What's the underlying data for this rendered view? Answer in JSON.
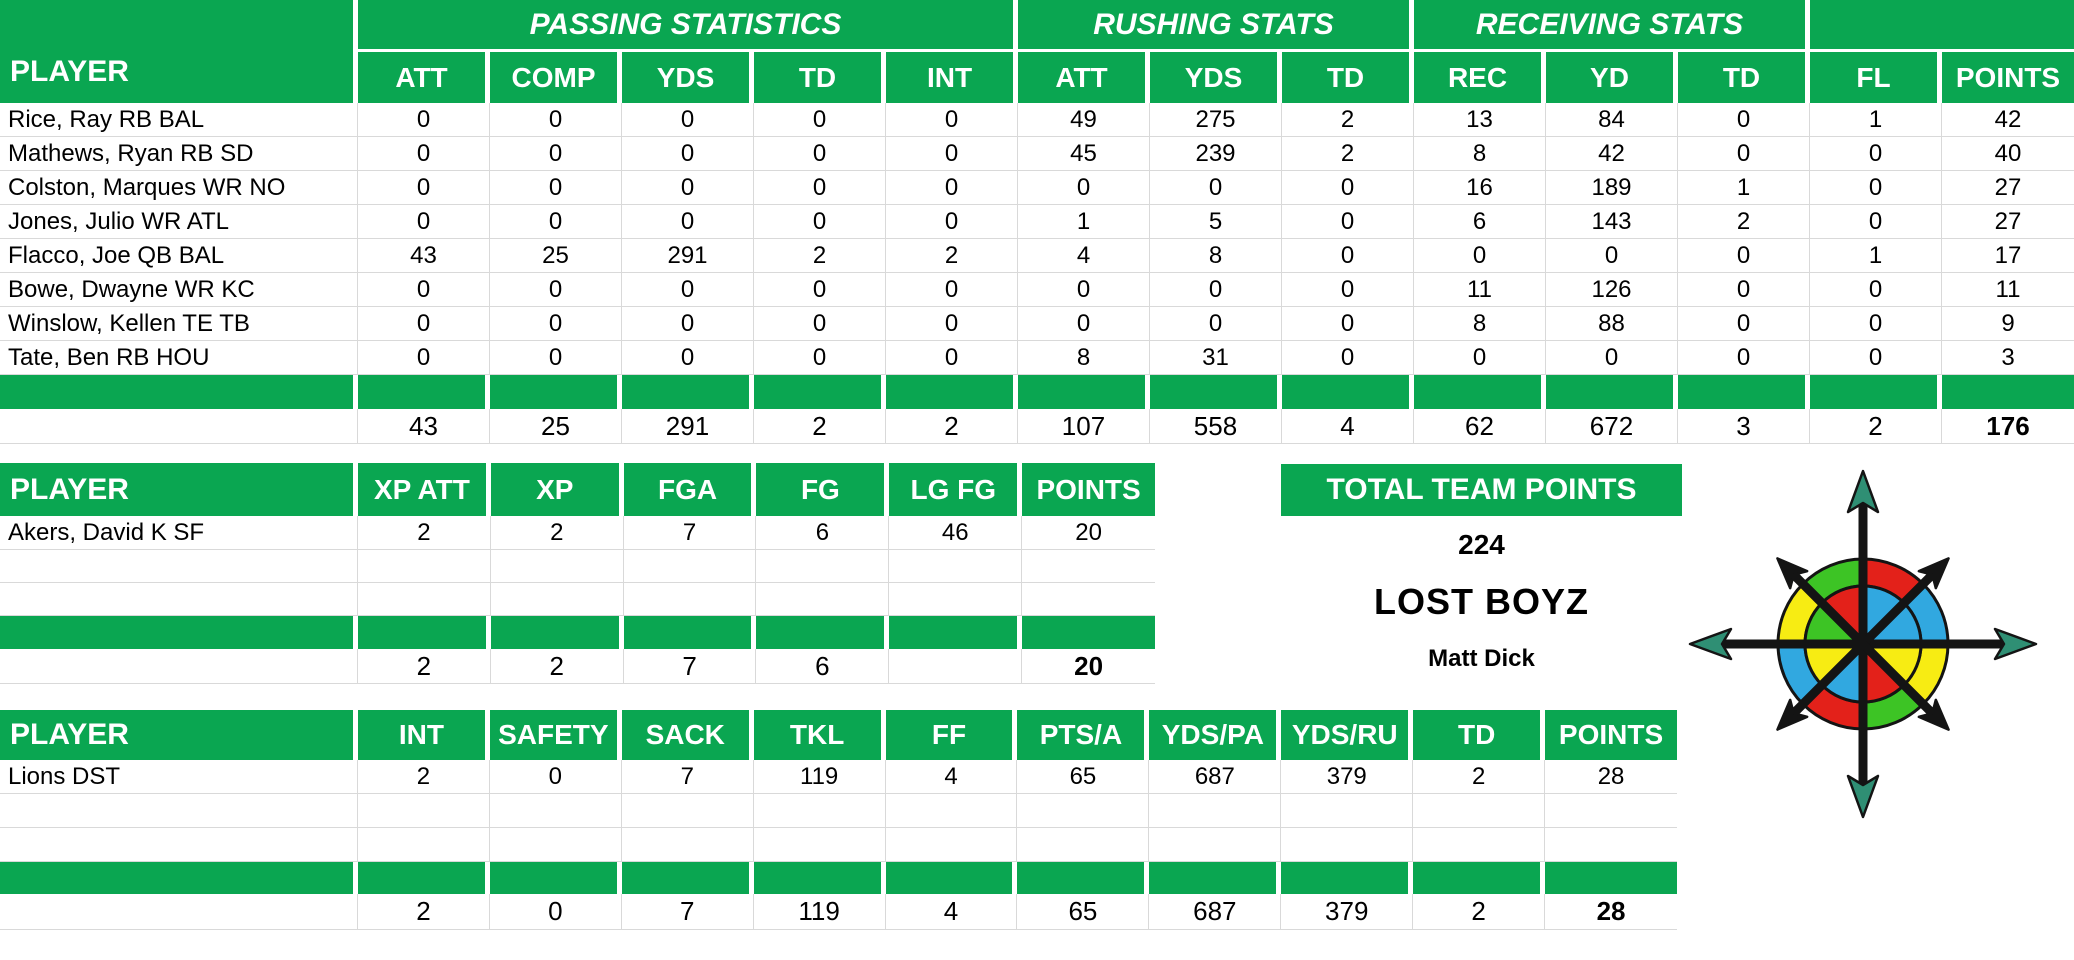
{
  "colors": {
    "green": "#0aa651",
    "grid": "#d9d9d9",
    "header_text": "#ffffff",
    "text": "#000000"
  },
  "offense_table": {
    "player_header": "PLAYER",
    "groups": [
      {
        "label": "PASSING STATISTICS",
        "span": 5
      },
      {
        "label": "RUSHING STATS",
        "span": 3
      },
      {
        "label": "RECEIVING STATS",
        "span": 3
      },
      {
        "label": "",
        "span": 2
      }
    ],
    "columns": [
      "ATT",
      "COMP",
      "YDS",
      "TD",
      "INT",
      "ATT",
      "YDS",
      "TD",
      "REC",
      "YD",
      "TD",
      "FL",
      "POINTS"
    ],
    "rows": [
      {
        "player": "Rice, Ray RB BAL",
        "values": [
          "0",
          "0",
          "0",
          "0",
          "0",
          "49",
          "275",
          "2",
          "13",
          "84",
          "0",
          "1",
          "42"
        ]
      },
      {
        "player": "Mathews, Ryan RB SD",
        "values": [
          "0",
          "0",
          "0",
          "0",
          "0",
          "45",
          "239",
          "2",
          "8",
          "42",
          "0",
          "0",
          "40"
        ]
      },
      {
        "player": "Colston, Marques WR NO",
        "values": [
          "0",
          "0",
          "0",
          "0",
          "0",
          "0",
          "0",
          "0",
          "16",
          "189",
          "1",
          "0",
          "27"
        ]
      },
      {
        "player": "Jones, Julio WR ATL",
        "values": [
          "0",
          "0",
          "0",
          "0",
          "0",
          "1",
          "5",
          "0",
          "6",
          "143",
          "2",
          "0",
          "27"
        ]
      },
      {
        "player": "Flacco, Joe QB BAL",
        "values": [
          "43",
          "25",
          "291",
          "2",
          "2",
          "4",
          "8",
          "0",
          "0",
          "0",
          "0",
          "1",
          "17"
        ]
      },
      {
        "player": "Bowe, Dwayne WR KC",
        "values": [
          "0",
          "0",
          "0",
          "0",
          "0",
          "0",
          "0",
          "0",
          "11",
          "126",
          "0",
          "0",
          "11"
        ]
      },
      {
        "player": "Winslow, Kellen TE TB",
        "values": [
          "0",
          "0",
          "0",
          "0",
          "0",
          "0",
          "0",
          "0",
          "8",
          "88",
          "0",
          "0",
          "9"
        ]
      },
      {
        "player": "Tate, Ben RB HOU",
        "values": [
          "0",
          "0",
          "0",
          "0",
          "0",
          "8",
          "31",
          "0",
          "0",
          "0",
          "0",
          "0",
          "3"
        ]
      }
    ],
    "empty_rows": 0,
    "totals": [
      "43",
      "25",
      "291",
      "2",
      "2",
      "107",
      "558",
      "4",
      "62",
      "672",
      "3",
      "2",
      "176"
    ]
  },
  "kicker_table": {
    "player_header": "PLAYER",
    "columns": [
      "XP ATT",
      "XP",
      "FGA",
      "FG",
      "LG FG",
      "POINTS"
    ],
    "rows": [
      {
        "player": "Akers, David K SF",
        "values": [
          "2",
          "2",
          "7",
          "6",
          "46",
          "20"
        ]
      }
    ],
    "empty_rows": 2,
    "totals": [
      "2",
      "2",
      "7",
      "6",
      "",
      "20"
    ]
  },
  "defense_table": {
    "player_header": "PLAYER",
    "columns": [
      "INT",
      "SAFETY",
      "SACK",
      "TKL",
      "FF",
      "PTS/A",
      "YDS/PA",
      "YDS/RU",
      "TD",
      "POINTS"
    ],
    "rows": [
      {
        "player": "Lions DST",
        "values": [
          "2",
          "0",
          "7",
          "119",
          "4",
          "65",
          "687",
          "379",
          "2",
          "28"
        ]
      }
    ],
    "empty_rows": 2,
    "totals": [
      "2",
      "0",
      "7",
      "119",
      "4",
      "65",
      "687",
      "379",
      "2",
      "28"
    ]
  },
  "team_summary": {
    "header": "TOTAL TEAM POINTS",
    "total_points": "224",
    "team_name": "LOST BOYZ",
    "owner": "Matt Dick"
  },
  "logo": {
    "kind": "compass-rose",
    "ring_colors": [
      "#e3211a",
      "#31a8e0",
      "#f7ec13",
      "#3dc425",
      "#e3211a",
      "#31a8e0",
      "#f7ec13",
      "#3dc425"
    ],
    "wedge_colors": [
      "#31a8e0",
      "#31a8e0",
      "#f7ec13",
      "#e3211a",
      "#31a8e0",
      "#f7ec13",
      "#3dc425",
      "#e3211a"
    ],
    "arrow_color": "#141414",
    "cardinal_arrowhead_color": "#2f8f74",
    "outline_color": "#141414"
  }
}
